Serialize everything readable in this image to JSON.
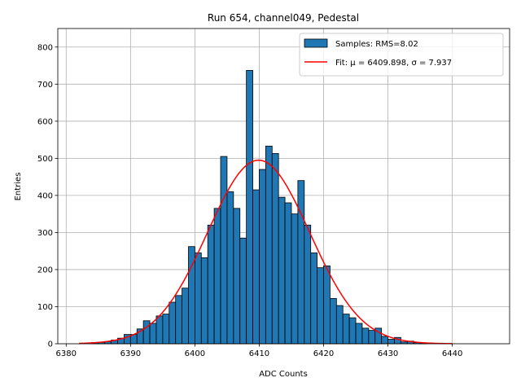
{
  "chart_data": {
    "type": "bar",
    "title": "Run 654, channel049, Pedestal",
    "xlabel": "ADC Counts",
    "ylabel": "Entries",
    "xlim": [
      6378.7,
      6448.9
    ],
    "ylim": [
      0,
      850
    ],
    "xticks": [
      6380,
      6390,
      6400,
      6410,
      6420,
      6430,
      6440
    ],
    "yticks": [
      0,
      100,
      200,
      300,
      400,
      500,
      600,
      700,
      800
    ],
    "grid": true,
    "legend_position": "top-right",
    "legend": {
      "samples_label": "Samples: RMS=8.02",
      "fit_label": "Fit: μ = 6409.898, σ = 7.937"
    },
    "histogram": {
      "name": "Samples: RMS=8.02",
      "color": "#1f77b4",
      "edge_color": "#000000",
      "bin_edges": [
        6384,
        6385,
        6386,
        6387,
        6388,
        6389,
        6390,
        6391,
        6392,
        6393,
        6394,
        6395,
        6396,
        6397,
        6398,
        6399,
        6400,
        6401,
        6402,
        6403,
        6404,
        6405,
        6406,
        6407,
        6408,
        6409,
        6410,
        6411,
        6412,
        6413,
        6414,
        6415,
        6416,
        6417,
        6418,
        6419,
        6420,
        6421,
        6422,
        6423,
        6424,
        6425,
        6426,
        6427,
        6428,
        6429,
        6430,
        6431,
        6432,
        6433,
        6434,
        6435,
        6436
      ],
      "counts": [
        3,
        4,
        6,
        10,
        15,
        25,
        25,
        40,
        62,
        55,
        75,
        80,
        112,
        130,
        150,
        262,
        245,
        232,
        320,
        365,
        505,
        410,
        365,
        285,
        737,
        415,
        470,
        533,
        513,
        395,
        380,
        350,
        440,
        320,
        245,
        205,
        210,
        122,
        103,
        80,
        70,
        55,
        42,
        36,
        42,
        20,
        12,
        17,
        5,
        7,
        3,
        2
      ]
    },
    "fit": {
      "name": "Fit: μ = 6409.898, σ = 7.937",
      "type": "gaussian",
      "mu": 6409.898,
      "sigma": 7.937,
      "amplitude": 495,
      "x_range": [
        6382,
        6440
      ],
      "color": "#ff0000"
    }
  }
}
